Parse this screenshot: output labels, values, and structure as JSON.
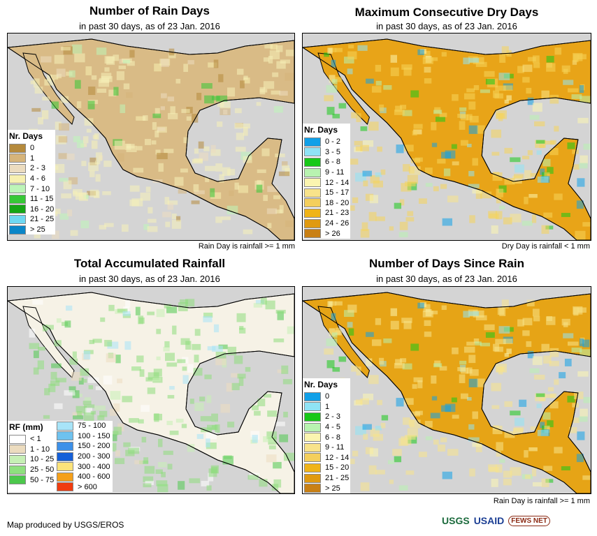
{
  "panels": [
    {
      "id": "rain-days",
      "title": "Number of Rain Days",
      "subtitle": "in past 30 days, as of 23 Jan. 2016",
      "note": "Rain Day is rainfall >= 1 mm",
      "legend_title": "Nr. Days",
      "legend": [
        {
          "label": "0",
          "color": "#b58a3c"
        },
        {
          "label": "1",
          "color": "#d6b47a"
        },
        {
          "label": "2 - 3",
          "color": "#ecdcbf"
        },
        {
          "label": "4 - 6",
          "color": "#f7f0b0"
        },
        {
          "label": "7 - 10",
          "color": "#bdf5b8"
        },
        {
          "label": "11 - 15",
          "color": "#37c837"
        },
        {
          "label": "16 - 20",
          "color": "#16a616"
        },
        {
          "label": "21 - 25",
          "color": "#6fd8f2"
        },
        {
          "label": "> 25",
          "color": "#0a86c8"
        }
      ],
      "land_color": "#d9bb86",
      "accent_color": "#f5f0b8"
    },
    {
      "id": "max-dry-days",
      "title": "Maximum Consecutive Dry Days",
      "subtitle": "in past 30 days, as of 23 Jan. 2016",
      "note": "Dry Day is rainfall < 1 mm",
      "legend_title": "Nr. Days",
      "legend": [
        {
          "label": "0 - 2",
          "color": "#10a0e8"
        },
        {
          "label": "3 - 5",
          "color": "#8fe3f5"
        },
        {
          "label": "6 - 8",
          "color": "#18c818"
        },
        {
          "label": "9 - 11",
          "color": "#b8f3b0"
        },
        {
          "label": "12 - 14",
          "color": "#fbf5b0"
        },
        {
          "label": "15 - 17",
          "color": "#f8e38a"
        },
        {
          "label": "18 - 20",
          "color": "#f4cf5c"
        },
        {
          "label": "21 - 23",
          "color": "#f0b418"
        },
        {
          "label": "24 - 26",
          "color": "#e09a10"
        },
        {
          "label": "> 26",
          "color": "#c98014"
        }
      ],
      "land_color": "#e8a418",
      "accent_color": "#f6d45a"
    },
    {
      "id": "total-rainfall",
      "title": "Total Accumulated Rainfall",
      "subtitle": "in past 30 days, as of 23 Jan. 2016",
      "note": "",
      "legend_title": "RF (mm)",
      "legend": [
        {
          "label": "< 1",
          "color": "#ffffff"
        },
        {
          "label": "1 - 10",
          "color": "#ecdcbf"
        },
        {
          "label": "10 - 25",
          "color": "#c6f0b5"
        },
        {
          "label": "25 - 50",
          "color": "#8ee07e"
        },
        {
          "label": "50 - 75",
          "color": "#4cc84c"
        }
      ],
      "legend2": [
        {
          "label": "75 - 100",
          "color": "#a8e4f8"
        },
        {
          "label": "100 - 150",
          "color": "#6ec2ef"
        },
        {
          "label": "150 - 200",
          "color": "#3d90e8"
        },
        {
          "label": "200 - 300",
          "color": "#1560d8"
        },
        {
          "label": "300 - 400",
          "color": "#fde37a"
        },
        {
          "label": "400 - 600",
          "color": "#f5a01a"
        },
        {
          "label": "> 600",
          "color": "#f03c10"
        }
      ],
      "land_color": "#f6f2e6",
      "accent_color": "#8edc7c"
    },
    {
      "id": "days-since-rain",
      "title": "Number of Days Since Rain",
      "subtitle": "in past 30 days, as of 23 Jan. 2016",
      "note": "Rain Day is rainfall >= 1 mm",
      "legend_title": "Nr. Days",
      "legend": [
        {
          "label": "0",
          "color": "#10a0e8"
        },
        {
          "label": "1",
          "color": "#8fe3f5"
        },
        {
          "label": "2 - 3",
          "color": "#18c818"
        },
        {
          "label": "4 - 5",
          "color": "#b8f3b0"
        },
        {
          "label": "6 - 8",
          "color": "#fbf5b0"
        },
        {
          "label": "9 - 11",
          "color": "#f8e38a"
        },
        {
          "label": "12 - 14",
          "color": "#f4cf5c"
        },
        {
          "label": "15 - 20",
          "color": "#f0b418"
        },
        {
          "label": "21 - 25",
          "color": "#e09a10"
        },
        {
          "label": "> 25",
          "color": "#c98014"
        }
      ],
      "land_color": "#e6a416",
      "accent_color": "#f8e38a"
    }
  ],
  "footer": {
    "credit": "Map produced by USGS/EROS",
    "logos": [
      "USGS",
      "USAID",
      "FEWS NET"
    ]
  },
  "colors": {
    "ocean": "#d4d4d4",
    "border": "#000000"
  }
}
